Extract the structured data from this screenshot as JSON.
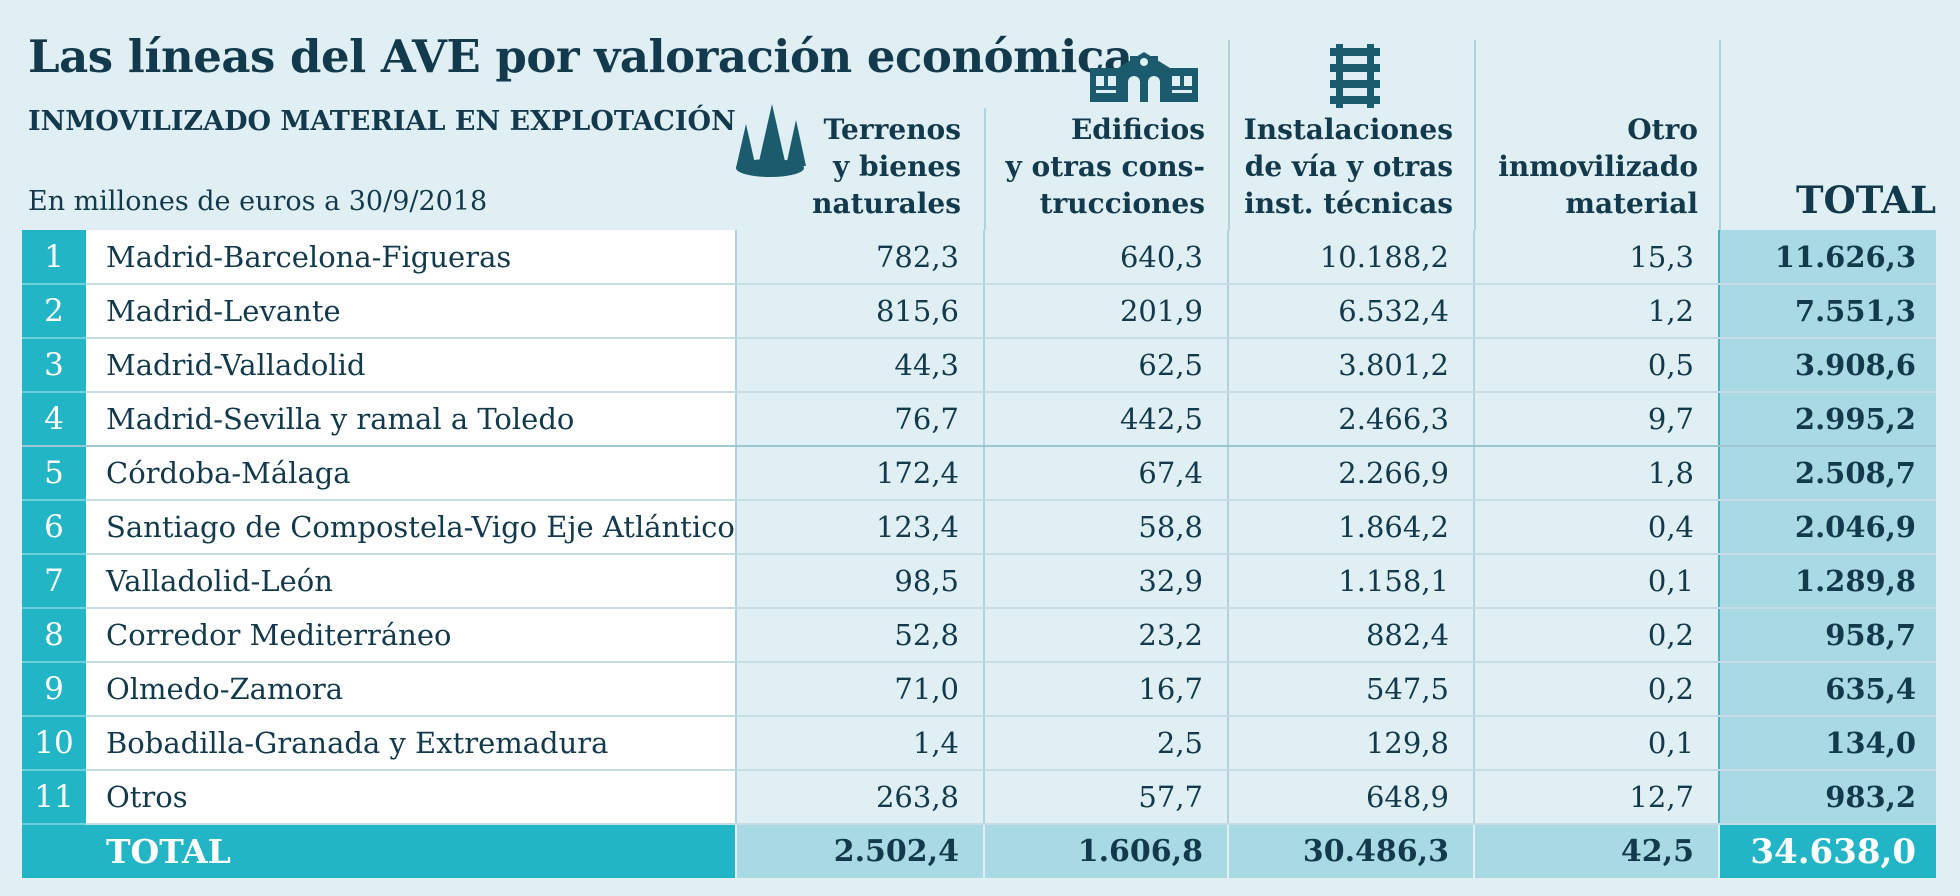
{
  "header": {
    "title": "Las líneas del AVE por valoración económica",
    "subtitle": "INMOVILIZADO MATERIAL EN EXPLOTACIÓN",
    "units": "En millones de euros a 30/9/2018"
  },
  "icons": {
    "terrenos": "trees-icon",
    "edificios": "station-building-icon",
    "instalaciones": "railway-track-icon"
  },
  "colors": {
    "background": "#e0eff3",
    "accent": "#22b5c6",
    "text": "#123a4c",
    "total_column": "#a9d9e2"
  },
  "chart_data": {
    "type": "table",
    "title": "Las líneas del AVE por valoración económica",
    "subtitle": "INMOVILIZADO MATERIAL EN EXPLOTACIÓN",
    "units": "En millones de euros a 30/9/2018",
    "columns": [
      {
        "key": "terrenos",
        "lines": [
          "Terrenos",
          "y bienes",
          "naturales"
        ]
      },
      {
        "key": "edificios",
        "lines": [
          "Edificios",
          "y otras cons-",
          "trucciones"
        ]
      },
      {
        "key": "instalaciones",
        "lines": [
          "Instalaciones",
          "de vía y otras",
          "inst. técnicas"
        ]
      },
      {
        "key": "otro",
        "lines": [
          "Otro",
          "inmovilizado",
          "material"
        ]
      },
      {
        "key": "total",
        "lines": [
          "TOTAL"
        ]
      }
    ],
    "rows": [
      {
        "rank": "1",
        "line": "Madrid-Barcelona-Figueras",
        "values": [
          "782,3",
          "640,3",
          "10.188,2",
          "15,3",
          "11.626,3"
        ]
      },
      {
        "rank": "2",
        "line": "Madrid-Levante",
        "values": [
          "815,6",
          "201,9",
          "6.532,4",
          "1,2",
          "7.551,3"
        ]
      },
      {
        "rank": "3",
        "line": "Madrid-Valladolid",
        "values": [
          "44,3",
          "62,5",
          "3.801,2",
          "0,5",
          "3.908,6"
        ]
      },
      {
        "rank": "4",
        "line": "Madrid-Sevilla y ramal a Toledo",
        "values": [
          "76,7",
          "442,5",
          "2.466,3",
          "9,7",
          "2.995,2"
        ]
      },
      {
        "rank": "5",
        "line": "Córdoba-Málaga",
        "values": [
          "172,4",
          "67,4",
          "2.266,9",
          "1,8",
          "2.508,7"
        ]
      },
      {
        "rank": "6",
        "line": "Santiago de Compostela-Vigo Eje Atlántico",
        "values": [
          "123,4",
          "58,8",
          "1.864,2",
          "0,4",
          "2.046,9"
        ]
      },
      {
        "rank": "7",
        "line": "Valladolid-León",
        "values": [
          "98,5",
          "32,9",
          "1.158,1",
          "0,1",
          "1.289,8"
        ]
      },
      {
        "rank": "8",
        "line": "Corredor Mediterráneo",
        "values": [
          "52,8",
          "23,2",
          "882,4",
          "0,2",
          "958,7"
        ]
      },
      {
        "rank": "9",
        "line": "Olmedo-Zamora",
        "values": [
          "71,0",
          "16,7",
          "547,5",
          "0,2",
          "635,4"
        ]
      },
      {
        "rank": "10",
        "line": "Bobadilla-Granada y Extremadura",
        "values": [
          "1,4",
          "2,5",
          "129,8",
          "0,1",
          "134,0"
        ]
      },
      {
        "rank": "11",
        "line": "Otros",
        "values": [
          "263,8",
          "57,7",
          "648,9",
          "12,7",
          "983,2"
        ]
      }
    ],
    "totals": {
      "label": "TOTAL",
      "values": [
        "2.502,4",
        "1.606,8",
        "30.486,3",
        "42,5",
        "34.638,0"
      ]
    }
  }
}
